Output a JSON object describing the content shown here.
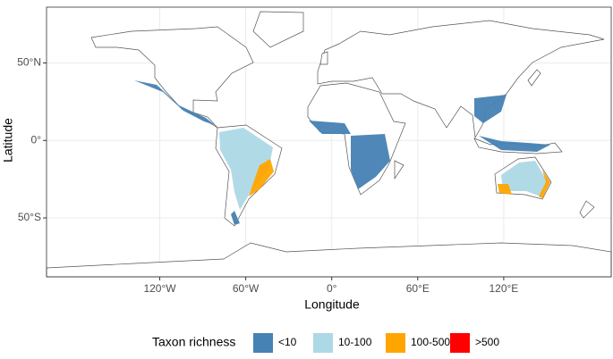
{
  "chart_data": {
    "type": "map",
    "x_label": "Longitude",
    "y_label": "Latitude",
    "xlim": [
      -199,
      195
    ],
    "ylim": [
      -88,
      86
    ],
    "xticks": [
      {
        "value": -120,
        "label": "120°W"
      },
      {
        "value": -60,
        "label": "60°W"
      },
      {
        "value": 0,
        "label": "0°"
      },
      {
        "value": 60,
        "label": "60°E"
      },
      {
        "value": 120,
        "label": "120°E"
      }
    ],
    "yticks": [
      {
        "value": -50,
        "label": "50°S"
      },
      {
        "value": 0,
        "label": "0°"
      },
      {
        "value": 50,
        "label": "50°N"
      }
    ],
    "grid": true,
    "legend": {
      "title": "Taxon richness",
      "items": [
        {
          "label": "<10",
          "color": "#4682b4"
        },
        {
          "label": "10-100",
          "color": "#add8e6"
        },
        {
          "label": "100-500",
          "color": "#ffa500"
        },
        {
          "label": ">500",
          "color": "#ff0000"
        }
      ]
    }
  }
}
